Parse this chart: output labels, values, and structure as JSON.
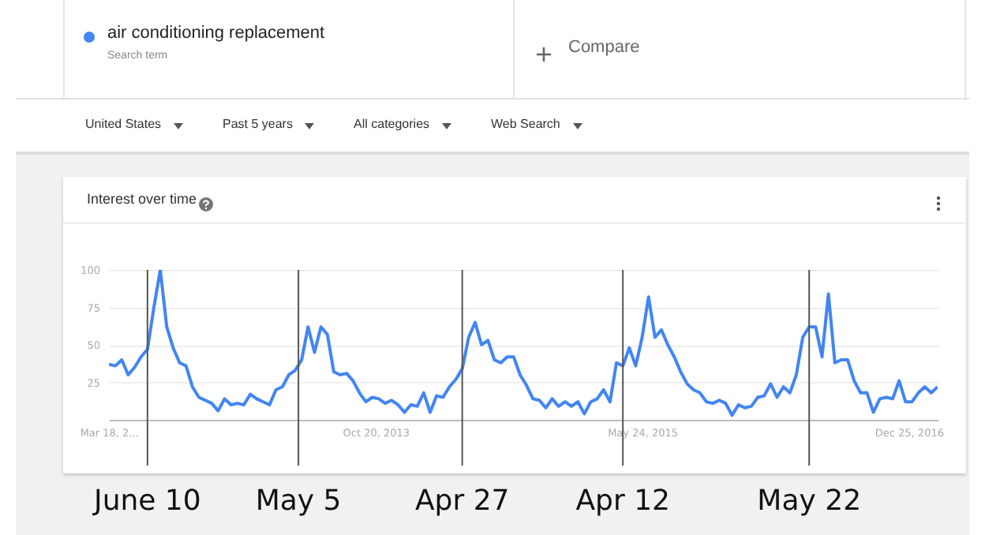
{
  "chart_data": {
    "type": "line",
    "title": "Interest over time",
    "x": [
      "2012-03-18",
      "2012-04-01",
      "2012-04-15",
      "2012-04-29",
      "2012-05-13",
      "2012-05-27",
      "2012-06-10",
      "2012-06-24",
      "2012-07-08",
      "2012-07-22",
      "2012-08-05",
      "2012-08-19",
      "2012-09-02",
      "2012-09-16",
      "2012-09-30",
      "2012-10-14",
      "2012-10-28",
      "2012-11-11",
      "2012-11-25",
      "2012-12-09",
      "2012-12-23",
      "2013-01-06",
      "2013-01-20",
      "2013-02-03",
      "2013-02-17",
      "2013-03-03",
      "2013-03-17",
      "2013-03-31",
      "2013-04-14",
      "2013-04-28",
      "2013-05-12",
      "2013-05-26",
      "2013-06-09",
      "2013-06-23",
      "2013-07-07",
      "2013-07-21",
      "2013-08-04",
      "2013-08-18",
      "2013-09-01",
      "2013-09-15",
      "2013-09-29",
      "2013-10-13",
      "2013-10-27",
      "2013-11-10",
      "2013-11-24",
      "2013-12-08",
      "2013-12-22",
      "2014-01-05",
      "2014-01-19",
      "2014-02-02",
      "2014-02-16",
      "2014-03-02",
      "2014-03-16",
      "2014-03-30",
      "2014-04-13",
      "2014-04-27",
      "2014-05-11",
      "2014-05-25",
      "2014-06-08",
      "2014-06-22",
      "2014-07-06",
      "2014-07-20",
      "2014-08-03",
      "2014-08-17",
      "2014-08-31",
      "2014-09-14",
      "2014-09-28",
      "2014-10-12",
      "2014-10-26",
      "2014-11-09",
      "2014-11-23",
      "2014-12-07",
      "2014-12-21",
      "2015-01-04",
      "2015-01-18",
      "2015-02-01",
      "2015-02-15",
      "2015-03-01",
      "2015-03-15",
      "2015-03-29",
      "2015-04-12",
      "2015-04-26",
      "2015-05-10",
      "2015-05-24",
      "2015-06-07",
      "2015-06-21",
      "2015-07-05",
      "2015-07-19",
      "2015-08-02",
      "2015-08-16",
      "2015-08-30",
      "2015-09-13",
      "2015-09-27",
      "2015-10-11",
      "2015-10-25",
      "2015-11-08",
      "2015-11-22",
      "2015-12-06",
      "2015-12-20",
      "2016-01-03",
      "2016-01-17",
      "2016-01-31",
      "2016-02-14",
      "2016-02-28",
      "2016-03-13",
      "2016-03-27",
      "2016-04-10",
      "2016-04-24",
      "2016-05-08",
      "2016-05-22",
      "2016-06-05",
      "2016-06-19",
      "2016-07-03",
      "2016-07-17",
      "2016-07-31",
      "2016-08-14",
      "2016-08-28",
      "2016-09-11",
      "2016-09-25",
      "2016-10-09",
      "2016-10-23",
      "2016-11-06",
      "2016-11-20",
      "2016-12-04",
      "2016-12-18",
      "2017-01-01",
      "2017-01-15",
      "2017-01-29",
      "2017-02-12",
      "2017-02-26"
    ],
    "series": [
      {
        "name": "air conditioning replacement",
        "color": "#4285f4",
        "values": [
          37,
          36,
          40,
          30,
          35,
          42,
          47,
          75,
          100,
          62,
          48,
          38,
          36,
          22,
          15,
          13,
          11,
          6,
          14,
          10,
          11,
          10,
          17,
          14,
          12,
          10,
          20,
          22,
          30,
          33,
          40,
          62,
          45,
          62,
          57,
          32,
          30,
          31,
          26,
          18,
          12,
          15,
          14,
          11,
          13,
          10,
          5,
          10,
          9,
          18,
          5,
          16,
          15,
          22,
          27,
          34,
          55,
          65,
          50,
          53,
          40,
          38,
          42,
          42,
          30,
          23,
          14,
          13,
          8,
          14,
          9,
          12,
          9,
          12,
          4,
          12,
          14,
          20,
          12,
          38,
          36,
          48,
          36,
          55,
          82,
          55,
          60,
          50,
          42,
          32,
          24,
          20,
          18,
          12,
          11,
          13,
          11,
          3,
          10,
          8,
          9,
          15,
          16,
          24,
          15,
          22,
          18,
          30,
          55,
          62,
          62,
          42,
          84,
          38,
          40,
          40,
          26,
          18,
          18,
          5,
          14,
          15,
          14,
          26,
          12,
          12,
          18,
          22,
          18,
          22
        ]
      }
    ],
    "xlim": [
      "2012-03-18",
      "2017-02-26"
    ],
    "xticks": [
      {
        "value": "2012-03-18",
        "label": "Mar 18, 2…"
      },
      {
        "value": "2013-10-20",
        "label": "Oct 20, 2013"
      },
      {
        "value": "2015-05-24",
        "label": "May 24, 2015"
      },
      {
        "value": "2016-12-25",
        "label": "Dec 25, 2016"
      }
    ],
    "ylim": [
      0,
      100
    ],
    "yticks": [
      25,
      50,
      75,
      100
    ],
    "grid": "y",
    "legend": "top left",
    "line_style": "solid",
    "marker": "none",
    "ref_lines": [
      {
        "axis": "x",
        "value": "2012-06-10",
        "label": "June 10"
      },
      {
        "axis": "x",
        "value": "2013-05-05",
        "label": "May 5"
      },
      {
        "axis": "x",
        "value": "2014-04-27",
        "label": "Apr 27"
      },
      {
        "axis": "x",
        "value": "2015-04-12",
        "label": "Apr 12"
      },
      {
        "axis": "x",
        "value": "2016-05-22",
        "label": "May 22"
      }
    ],
    "annotations": [
      "Search term",
      "Compare",
      "United States",
      "Past 5 years",
      "All categories",
      "Web Search"
    ]
  }
}
